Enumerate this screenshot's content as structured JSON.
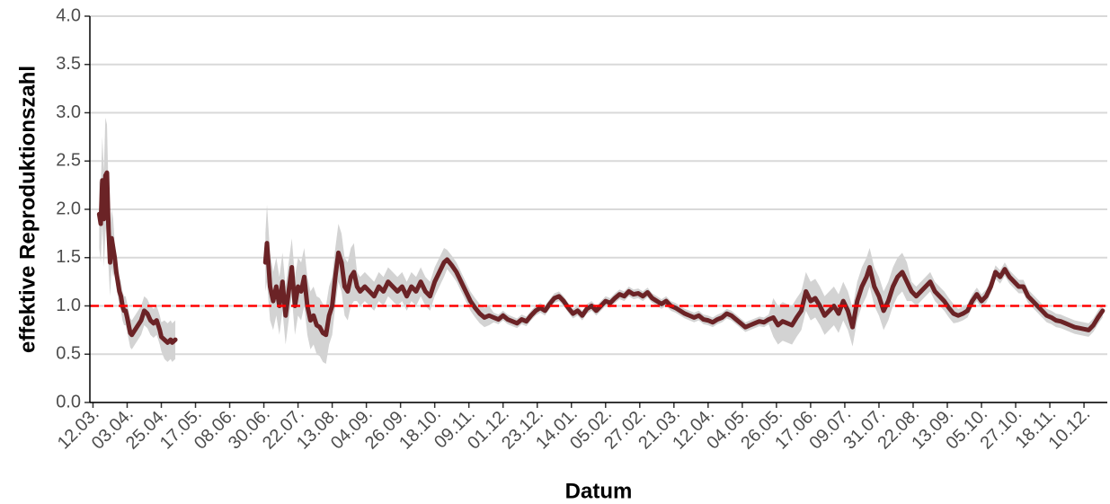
{
  "chart_data": {
    "type": "line",
    "y_label": "effektive Reproduktionszahl",
    "x_label": "Datum",
    "xlim": [
      -2,
      653
    ],
    "ylim": [
      0,
      4
    ],
    "yticks": [
      {
        "value": 0,
        "label": "0.0"
      },
      {
        "value": 0.5,
        "label": "0.5"
      },
      {
        "value": 1,
        "label": "1.0"
      },
      {
        "value": 1.5,
        "label": "1.5"
      },
      {
        "value": 2,
        "label": "2.0"
      },
      {
        "value": 2.5,
        "label": "2.5"
      },
      {
        "value": 3,
        "label": "3.0"
      },
      {
        "value": 3.5,
        "label": "3.5"
      },
      {
        "value": 4,
        "label": "4.0"
      }
    ],
    "xticks": [
      {
        "value": 0,
        "label": "12.03."
      },
      {
        "value": 22,
        "label": "03.04."
      },
      {
        "value": 44,
        "label": "25.04."
      },
      {
        "value": 66,
        "label": "17.05."
      },
      {
        "value": 88,
        "label": "08.06."
      },
      {
        "value": 110,
        "label": "30.06."
      },
      {
        "value": 132,
        "label": "22.07."
      },
      {
        "value": 154,
        "label": "13.08."
      },
      {
        "value": 176,
        "label": "04.09."
      },
      {
        "value": 198,
        "label": "26.09."
      },
      {
        "value": 220,
        "label": "18.10."
      },
      {
        "value": 242,
        "label": "09.11."
      },
      {
        "value": 264,
        "label": "01.12."
      },
      {
        "value": 286,
        "label": "23.12."
      },
      {
        "value": 308,
        "label": "14.01."
      },
      {
        "value": 330,
        "label": "05.02."
      },
      {
        "value": 352,
        "label": "27.02."
      },
      {
        "value": 374,
        "label": "21.03."
      },
      {
        "value": 396,
        "label": "12.04."
      },
      {
        "value": 418,
        "label": "04.05."
      },
      {
        "value": 440,
        "label": "26.05."
      },
      {
        "value": 462,
        "label": "17.06."
      },
      {
        "value": 484,
        "label": "09.07."
      },
      {
        "value": 506,
        "label": "31.07."
      },
      {
        "value": 528,
        "label": "22.08."
      },
      {
        "value": 550,
        "label": "13.09."
      },
      {
        "value": 572,
        "label": "05.10."
      },
      {
        "value": 594,
        "label": "27.10."
      },
      {
        "value": 616,
        "label": "18.11."
      },
      {
        "value": 638,
        "label": "10.12."
      }
    ],
    "grid": true,
    "hline": 1,
    "hline_color": "#ff0000",
    "band_color": "#d3d3d3",
    "x": [
      4,
      5,
      6,
      7,
      8,
      9,
      10,
      11,
      12,
      13,
      14,
      15,
      16,
      17,
      18,
      19,
      20,
      21,
      22,
      23,
      24,
      25,
      27,
      29,
      31,
      33,
      35,
      37,
      39,
      41,
      43,
      44,
      46,
      48,
      50,
      51,
      53,
      80,
      111,
      112,
      114,
      116,
      118,
      120,
      122,
      124,
      126,
      128,
      130,
      132,
      134,
      136,
      138,
      140,
      142,
      144,
      146,
      148,
      150,
      152,
      154,
      156,
      158,
      160,
      162,
      164,
      166,
      168,
      170,
      172,
      175,
      178,
      181,
      184,
      187,
      190,
      193,
      196,
      199,
      202,
      205,
      208,
      211,
      214,
      217,
      220,
      223,
      226,
      228,
      231,
      234,
      237,
      240,
      243,
      246,
      249,
      252,
      255,
      258,
      261,
      264,
      267,
      270,
      273,
      276,
      279,
      282,
      285,
      288,
      291,
      294,
      297,
      300,
      303,
      306,
      309,
      312,
      315,
      318,
      321,
      324,
      327,
      330,
      333,
      336,
      339,
      342,
      345,
      348,
      351,
      354,
      357,
      360,
      363,
      366,
      369,
      372,
      375,
      378,
      381,
      384,
      387,
      390,
      393,
      396,
      399,
      402,
      405,
      408,
      411,
      414,
      417,
      420,
      423,
      426,
      429,
      432,
      435,
      438,
      441,
      444,
      447,
      450,
      453,
      456,
      459,
      462,
      465,
      468,
      471,
      474,
      477,
      480,
      483,
      486,
      489,
      492,
      495,
      498,
      500,
      503,
      506,
      509,
      512,
      515,
      518,
      521,
      524,
      527,
      530,
      533,
      536,
      539,
      542,
      545,
      548,
      551,
      554,
      557,
      560,
      563,
      566,
      569,
      572,
      575,
      578,
      581,
      584,
      587,
      590,
      593,
      596,
      599,
      602,
      605,
      608,
      611,
      614,
      617,
      620,
      623,
      626,
      629,
      632,
      635,
      638,
      641,
      644,
      647,
      650
    ],
    "series": [
      {
        "color": "#6b2326",
        "values": [
          1.95,
          1.85,
          2.3,
          1.9,
          2.35,
          2.38,
          1.8,
          1.45,
          1.7,
          1.6,
          1.5,
          1.35,
          1.25,
          1.15,
          1.1,
          1.0,
          0.95,
          0.95,
          0.88,
          0.8,
          0.72,
          0.7,
          0.75,
          0.8,
          0.85,
          0.95,
          0.92,
          0.85,
          0.82,
          0.85,
          0.75,
          0.68,
          0.65,
          0.62,
          0.65,
          0.62,
          0.65,
          null,
          1.45,
          1.65,
          1.2,
          1.05,
          1.2,
          1.0,
          1.25,
          0.9,
          1.15,
          1.4,
          1.0,
          1.2,
          1.15,
          1.3,
          1.0,
          0.85,
          0.9,
          0.8,
          0.78,
          0.72,
          0.7,
          0.9,
          1.0,
          1.3,
          1.55,
          1.45,
          1.2,
          1.15,
          1.3,
          1.35,
          1.2,
          1.15,
          1.2,
          1.15,
          1.1,
          1.2,
          1.15,
          1.25,
          1.2,
          1.15,
          1.2,
          1.1,
          1.2,
          1.15,
          1.25,
          1.15,
          1.1,
          1.25,
          1.35,
          1.45,
          1.48,
          1.42,
          1.35,
          1.25,
          1.15,
          1.05,
          0.98,
          0.92,
          0.88,
          0.9,
          0.88,
          0.86,
          0.9,
          0.86,
          0.84,
          0.82,
          0.86,
          0.84,
          0.9,
          0.95,
          0.98,
          0.95,
          1.02,
          1.08,
          1.1,
          1.05,
          0.98,
          0.92,
          0.95,
          0.9,
          0.97,
          1.0,
          0.95,
          1.0,
          1.05,
          1.03,
          1.08,
          1.12,
          1.1,
          1.15,
          1.12,
          1.13,
          1.1,
          1.14,
          1.08,
          1.05,
          1.02,
          1.05,
          1.0,
          0.98,
          0.95,
          0.92,
          0.9,
          0.88,
          0.9,
          0.86,
          0.85,
          0.83,
          0.86,
          0.88,
          0.92,
          0.9,
          0.86,
          0.82,
          0.78,
          0.8,
          0.82,
          0.84,
          0.83,
          0.86,
          0.88,
          0.8,
          0.84,
          0.82,
          0.8,
          0.88,
          0.95,
          1.15,
          1.05,
          1.08,
          1.0,
          0.9,
          0.95,
          1.0,
          0.92,
          1.05,
          0.95,
          0.78,
          1.05,
          1.2,
          1.3,
          1.4,
          1.2,
          1.1,
          0.95,
          1.05,
          1.2,
          1.3,
          1.35,
          1.25,
          1.15,
          1.1,
          1.15,
          1.2,
          1.25,
          1.15,
          1.1,
          1.05,
          0.98,
          0.92,
          0.9,
          0.92,
          0.95,
          1.05,
          1.12,
          1.05,
          1.1,
          1.2,
          1.35,
          1.3,
          1.38,
          1.3,
          1.25,
          1.2,
          1.2,
          1.1,
          1.05,
          1.0,
          0.95,
          0.9,
          0.88,
          0.85,
          0.84,
          0.82,
          0.8,
          0.78,
          0.77,
          0.76,
          0.75,
          0.8,
          0.88,
          0.95
        ],
        "errors": [
          0.35,
          0.4,
          0.45,
          0.5,
          0.6,
          0.5,
          0.4,
          0.35,
          0.3,
          0.3,
          0.15,
          0.15,
          0.15,
          0.15,
          0.15,
          0.15,
          0.15,
          0.15,
          0.15,
          0.15,
          0.15,
          0.15,
          0.15,
          0.15,
          0.15,
          0.15,
          0.15,
          0.15,
          0.15,
          0.15,
          0.15,
          0.15,
          0.2,
          0.2,
          0.2,
          0.2,
          0.2,
          null,
          0.3,
          0.4,
          0.35,
          0.3,
          0.3,
          0.3,
          0.3,
          0.3,
          0.3,
          0.3,
          0.3,
          0.3,
          0.3,
          0.3,
          0.3,
          0.3,
          0.3,
          0.3,
          0.3,
          0.3,
          0.3,
          0.3,
          0.3,
          0.3,
          0.3,
          0.3,
          0.3,
          0.3,
          0.3,
          0.3,
          0.15,
          0.15,
          0.15,
          0.15,
          0.15,
          0.15,
          0.15,
          0.15,
          0.15,
          0.15,
          0.15,
          0.15,
          0.15,
          0.15,
          0.15,
          0.15,
          0.15,
          0.15,
          0.15,
          0.15,
          0.1,
          0.1,
          0.1,
          0.1,
          0.1,
          0.1,
          0.1,
          0.1,
          0.1,
          0.1,
          0.05,
          0.05,
          0.05,
          0.05,
          0.05,
          0.05,
          0.05,
          0.05,
          0.05,
          0.05,
          0.05,
          0.05,
          0.05,
          0.05,
          0.05,
          0.05,
          0.05,
          0.05,
          0.05,
          0.05,
          0.05,
          0.05,
          0.05,
          0.05,
          0.05,
          0.05,
          0.05,
          0.05,
          0.05,
          0.05,
          0.05,
          0.05,
          0.05,
          0.05,
          0.05,
          0.05,
          0.05,
          0.05,
          0.05,
          0.05,
          0.05,
          0.05,
          0.05,
          0.05,
          0.05,
          0.05,
          0.05,
          0.05,
          0.05,
          0.05,
          0.05,
          0.05,
          0.05,
          0.05,
          0.05,
          0.05,
          0.05,
          0.05,
          0.05,
          0.05,
          0.2,
          0.2,
          0.2,
          0.2,
          0.2,
          0.2,
          0.2,
          0.2,
          0.2,
          0.2,
          0.2,
          0.2,
          0.2,
          0.2,
          0.2,
          0.2,
          0.2,
          0.2,
          0.2,
          0.2,
          0.2,
          0.2,
          0.2,
          0.2,
          0.2,
          0.2,
          0.2,
          0.2,
          0.2,
          0.2,
          0.1,
          0.1,
          0.1,
          0.1,
          0.1,
          0.1,
          0.1,
          0.1,
          0.1,
          0.1,
          0.07,
          0.07,
          0.07,
          0.07,
          0.07,
          0.07,
          0.07,
          0.07,
          0.07,
          0.07,
          0.07,
          0.07,
          0.07,
          0.07,
          0.07,
          0.07,
          0.07,
          0.07,
          0.07,
          0.07,
          0.07,
          0.07,
          0.07,
          0.07,
          0.07,
          0.07,
          0.07,
          0.07,
          0.07,
          0.07,
          0.07,
          0.07
        ]
      }
    ]
  }
}
